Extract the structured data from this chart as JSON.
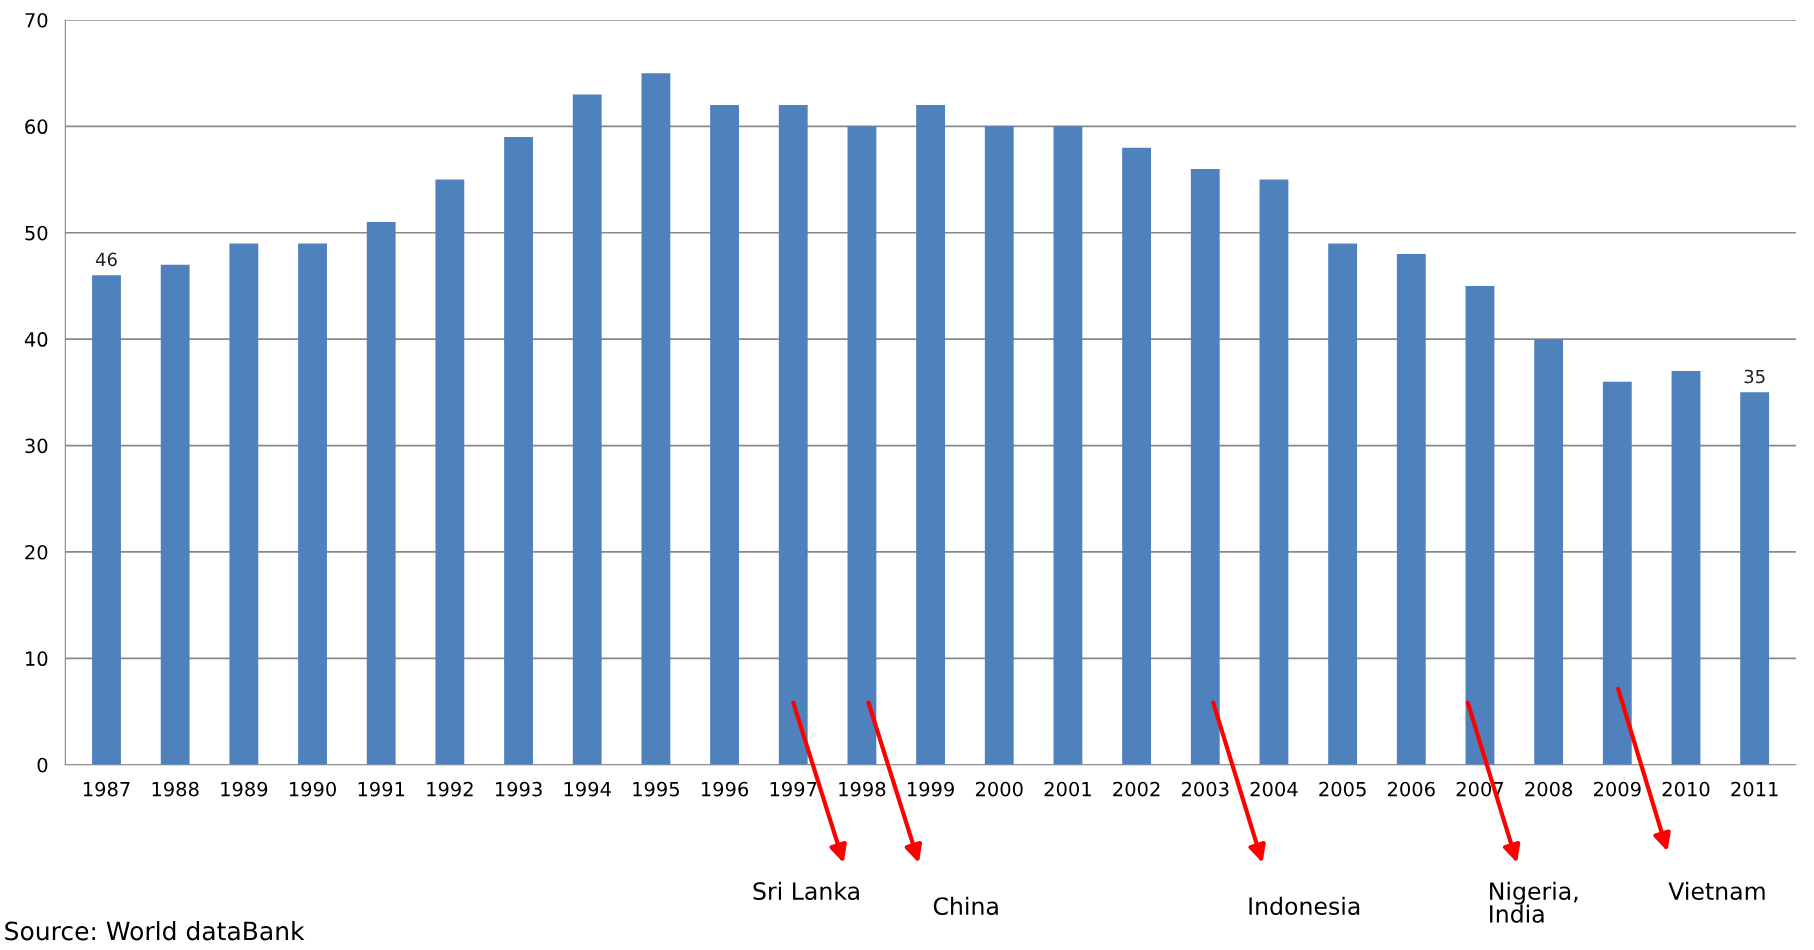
{
  "chart_data": {
    "type": "bar",
    "categories": [
      "1987",
      "1988",
      "1989",
      "1990",
      "1991",
      "1992",
      "1993",
      "1994",
      "1995",
      "1996",
      "1997",
      "1998",
      "1999",
      "2000",
      "2001",
      "2002",
      "2003",
      "2004",
      "2005",
      "2006",
      "2007",
      "2008",
      "2009",
      "2010",
      "2011"
    ],
    "values": [
      46,
      47,
      49,
      49,
      51,
      55,
      59,
      63,
      65,
      62,
      62,
      60,
      62,
      60,
      60,
      58,
      56,
      55,
      49,
      48,
      45,
      40,
      36,
      37,
      35
    ],
    "value_labels": [
      "46",
      null,
      null,
      null,
      null,
      null,
      null,
      null,
      null,
      null,
      null,
      null,
      null,
      null,
      null,
      null,
      null,
      null,
      null,
      null,
      null,
      null,
      null,
      null,
      "35"
    ],
    "color": "#4f81bd",
    "ylim": [
      0,
      70
    ],
    "yticks": [
      0,
      10,
      20,
      30,
      40,
      50,
      60,
      70
    ],
    "grid": "y",
    "legend": false,
    "annotations": [
      "Sri Lanka",
      "China",
      "Indonesia",
      "Nigeria,\nIndia",
      "Vietnam",
      "Source: World dataBank"
    ]
  }
}
